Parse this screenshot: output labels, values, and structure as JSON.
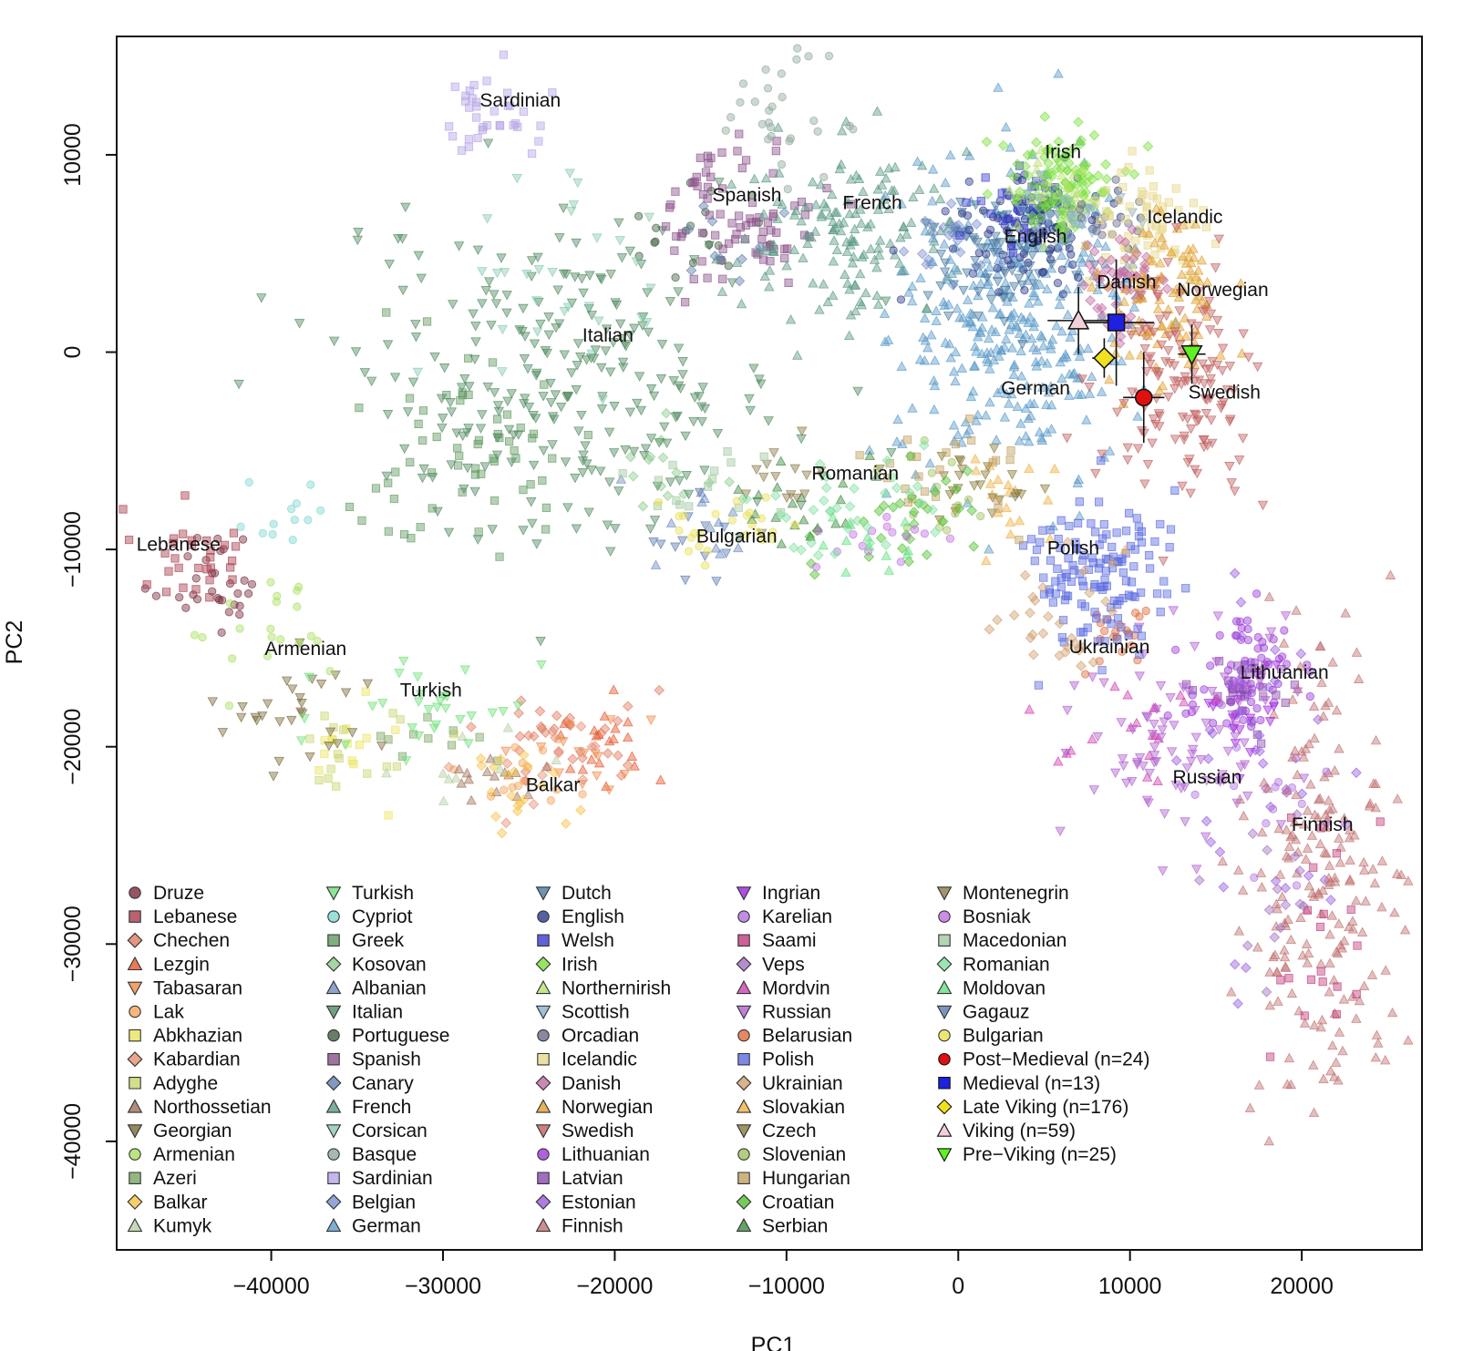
{
  "chart_data": {
    "type": "scatter",
    "title": "",
    "xlabel": "PC1",
    "ylabel": "PC2",
    "xlim": [
      -49000,
      27000
    ],
    "ylim": [
      -45500,
      16000
    ],
    "xticks": [
      -40000,
      -30000,
      -20000,
      -10000,
      0,
      10000,
      20000
    ],
    "yticks": [
      -40000,
      -30000,
      -20000,
      -10000,
      0,
      10000
    ],
    "xtick_labels": [
      "−40000",
      "−30000",
      "−20000",
      "−10000",
      "0",
      "10000",
      "20000"
    ],
    "ytick_labels": [
      "−40000",
      "−30000",
      "−20000",
      "−10000",
      "0",
      "10000"
    ],
    "grid": false,
    "legend_position": "bottom-left",
    "cluster_labels": [
      {
        "text": "Sardinian",
        "x": -25500,
        "y": 12700
      },
      {
        "text": "Irish",
        "x": 6100,
        "y": 10100
      },
      {
        "text": "Spanish",
        "x": -12300,
        "y": 7900
      },
      {
        "text": "French",
        "x": -5000,
        "y": 7500
      },
      {
        "text": "Icelandic",
        "x": 13200,
        "y": 6800
      },
      {
        "text": "English",
        "x": 4500,
        "y": 5800
      },
      {
        "text": "Danish",
        "x": 9800,
        "y": 3500
      },
      {
        "text": "Norwegian",
        "x": 15400,
        "y": 3100
      },
      {
        "text": "Italian",
        "x": -20400,
        "y": 800
      },
      {
        "text": "German",
        "x": 4500,
        "y": -1900
      },
      {
        "text": "Swedish",
        "x": 15500,
        "y": -2100
      },
      {
        "text": "Romanian",
        "x": -6000,
        "y": -6200
      },
      {
        "text": "Bulgarian",
        "x": -12900,
        "y": -9400
      },
      {
        "text": "Lebanese",
        "x": -45400,
        "y": -9800
      },
      {
        "text": "Polish",
        "x": 6700,
        "y": -10000
      },
      {
        "text": "Armenian",
        "x": -38000,
        "y": -15100
      },
      {
        "text": "Ukrainian",
        "x": 8800,
        "y": -15000
      },
      {
        "text": "Lithuanian",
        "x": 19000,
        "y": -16300
      },
      {
        "text": "Turkish",
        "x": -30700,
        "y": -17200
      },
      {
        "text": "Balkar",
        "x": -23600,
        "y": -22000
      },
      {
        "text": "Russian",
        "x": 14500,
        "y": -21600
      },
      {
        "text": "Finnish",
        "x": 21200,
        "y": -24000
      }
    ],
    "series": [
      {
        "name": "Druze",
        "marker": "circle",
        "color": "#7b2c3b",
        "cx": -43500,
        "cy": -11500,
        "sx": 1800,
        "sy": 1400,
        "n": 30
      },
      {
        "name": "Lebanese",
        "marker": "square",
        "color": "#a83b4c",
        "cx": -45000,
        "cy": -10300,
        "sx": 1500,
        "sy": 1200,
        "n": 30
      },
      {
        "name": "Chechen",
        "marker": "diamond",
        "color": "#e07a5f",
        "cx": -22500,
        "cy": -19500,
        "sx": 2500,
        "sy": 1400,
        "n": 30
      },
      {
        "name": "Lezgin",
        "marker": "triangle-up",
        "color": "#e4572e",
        "cx": -21000,
        "cy": -19500,
        "sx": 2000,
        "sy": 1200,
        "n": 20
      },
      {
        "name": "Tabasaran",
        "marker": "triangle-down",
        "color": "#f08a4b",
        "cx": -22000,
        "cy": -20500,
        "sx": 2000,
        "sy": 1200,
        "n": 15
      },
      {
        "name": "Lak",
        "marker": "circle",
        "color": "#f4a259",
        "cx": -25000,
        "cy": -21000,
        "sx": 1800,
        "sy": 1200,
        "n": 15
      },
      {
        "name": "Abkhazian",
        "marker": "square",
        "color": "#e9e45b",
        "cx": -34500,
        "cy": -20300,
        "sx": 1600,
        "sy": 1200,
        "n": 15
      },
      {
        "name": "Kabardian",
        "marker": "diamond",
        "color": "#e58e73",
        "cx": -24000,
        "cy": -20500,
        "sx": 2000,
        "sy": 1300,
        "n": 15
      },
      {
        "name": "Adyghe",
        "marker": "square",
        "color": "#c9d46c",
        "cx": -35500,
        "cy": -20000,
        "sx": 2000,
        "sy": 1300,
        "n": 15
      },
      {
        "name": "Northossetian",
        "marker": "triangle-up",
        "color": "#a0705a",
        "cx": -27000,
        "cy": -21500,
        "sx": 1800,
        "sy": 1000,
        "n": 15
      },
      {
        "name": "Georgian",
        "marker": "triangle-down",
        "color": "#7a6a3a",
        "cx": -38000,
        "cy": -18500,
        "sx": 2500,
        "sy": 1400,
        "n": 30
      },
      {
        "name": "Armenian",
        "marker": "circle",
        "color": "#a8e05f",
        "cx": -39500,
        "cy": -14500,
        "sx": 2000,
        "sy": 1500,
        "n": 20
      },
      {
        "name": "Azeri",
        "marker": "square",
        "color": "#7ca45f",
        "cx": -31000,
        "cy": -19000,
        "sx": 2000,
        "sy": 1000,
        "n": 10
      },
      {
        "name": "Balkar",
        "marker": "diamond",
        "color": "#f6c244",
        "cx": -25500,
        "cy": -22000,
        "sx": 1600,
        "sy": 1200,
        "n": 20
      },
      {
        "name": "Kumyk",
        "marker": "triangle-up",
        "color": "#b5cfa2",
        "cx": -28500,
        "cy": -21000,
        "sx": 2000,
        "sy": 1000,
        "n": 10
      },
      {
        "name": "Turkish",
        "marker": "triangle-down",
        "color": "#6fe07a",
        "cx": -30500,
        "cy": -18000,
        "sx": 3000,
        "sy": 2000,
        "n": 30
      },
      {
        "name": "Cypriot",
        "marker": "circle",
        "color": "#7fd8d0",
        "cx": -39000,
        "cy": -8000,
        "sx": 1500,
        "sy": 1500,
        "n": 12
      },
      {
        "name": "Greek",
        "marker": "square",
        "color": "#5f9a5f",
        "cx": -29000,
        "cy": -5000,
        "sx": 4000,
        "sy": 2500,
        "n": 60
      },
      {
        "name": "Kosovan",
        "marker": "diamond",
        "color": "#8ccc8c",
        "cx": -15000,
        "cy": -6000,
        "sx": 2500,
        "sy": 1500,
        "n": 15
      },
      {
        "name": "Albanian",
        "marker": "triangle-up",
        "color": "#6f8cc0",
        "cx": -14500,
        "cy": -8500,
        "sx": 2000,
        "sy": 1300,
        "n": 12
      },
      {
        "name": "Italian",
        "marker": "triangle-down",
        "color": "#4f8a5f",
        "cx": -23000,
        "cy": -1500,
        "sx": 6500,
        "sy": 4000,
        "n": 260
      },
      {
        "name": "Portuguese",
        "marker": "circle",
        "color": "#406040",
        "cx": -14500,
        "cy": 6200,
        "sx": 2500,
        "sy": 1500,
        "n": 20
      },
      {
        "name": "Spanish",
        "marker": "square",
        "color": "#8a4f8a",
        "cx": -12500,
        "cy": 7000,
        "sx": 2200,
        "sy": 1800,
        "n": 80
      },
      {
        "name": "Canary",
        "marker": "diamond",
        "color": "#5f7fb0",
        "cx": -13500,
        "cy": 5500,
        "sx": 1500,
        "sy": 1500,
        "n": 10
      },
      {
        "name": "French",
        "marker": "triangle-up",
        "color": "#5a9a86",
        "cx": -6000,
        "cy": 6000,
        "sx": 3500,
        "sy": 2200,
        "n": 150
      },
      {
        "name": "Corsican",
        "marker": "triangle-down",
        "color": "#88c9b0",
        "cx": -24000,
        "cy": 3000,
        "sx": 4000,
        "sy": 3500,
        "n": 30
      },
      {
        "name": "Basque",
        "marker": "circle",
        "color": "#8fa89a",
        "cx": -10500,
        "cy": 12300,
        "sx": 1500,
        "sy": 1500,
        "n": 30
      },
      {
        "name": "Sardinian",
        "marker": "square",
        "color": "#b6a4e6",
        "cx": -27500,
        "cy": 12000,
        "sx": 1500,
        "sy": 1300,
        "n": 35
      },
      {
        "name": "Belgian",
        "marker": "diamond",
        "color": "#7a8fd0",
        "cx": -500,
        "cy": 5200,
        "sx": 1500,
        "sy": 1200,
        "n": 25
      },
      {
        "name": "German",
        "marker": "triangle-up",
        "color": "#5a9ac8",
        "cx": 3500,
        "cy": 1500,
        "sx": 3500,
        "sy": 3800,
        "n": 320
      },
      {
        "name": "Dutch",
        "marker": "triangle-down",
        "color": "#4a7aa0",
        "cx": 2500,
        "cy": 5000,
        "sx": 2200,
        "sy": 1500,
        "n": 80
      },
      {
        "name": "English",
        "marker": "circle",
        "color": "#2a3a8a",
        "cx": 4500,
        "cy": 6300,
        "sx": 2000,
        "sy": 1300,
        "n": 120
      },
      {
        "name": "Welsh",
        "marker": "square",
        "color": "#3a3ad0",
        "cx": 3500,
        "cy": 7500,
        "sx": 1500,
        "sy": 1200,
        "n": 25
      },
      {
        "name": "Irish",
        "marker": "diamond",
        "color": "#7ae03a",
        "cx": 6000,
        "cy": 8600,
        "sx": 1600,
        "sy": 1300,
        "n": 110
      },
      {
        "name": "Northernirish",
        "marker": "triangle-up",
        "color": "#b8e06a",
        "cx": 5500,
        "cy": 8000,
        "sx": 1500,
        "sy": 1200,
        "n": 30
      },
      {
        "name": "Scottish",
        "marker": "triangle-down",
        "color": "#8ab0c8",
        "cx": 7000,
        "cy": 6600,
        "sx": 1800,
        "sy": 1300,
        "n": 30
      },
      {
        "name": "Orcadian",
        "marker": "circle",
        "color": "#6a6a8a",
        "cx": 8500,
        "cy": 7000,
        "sx": 1200,
        "sy": 1000,
        "n": 15
      },
      {
        "name": "Icelandic",
        "marker": "square",
        "color": "#e6d88a",
        "cx": 11000,
        "cy": 6500,
        "sx": 1700,
        "sy": 1800,
        "n": 60
      },
      {
        "name": "Danish",
        "marker": "diamond",
        "color": "#c06aa0",
        "cx": 9500,
        "cy": 3000,
        "sx": 1500,
        "sy": 1500,
        "n": 60
      },
      {
        "name": "Norwegian",
        "marker": "triangle-up",
        "color": "#e0a030",
        "cx": 12000,
        "cy": 2500,
        "sx": 1700,
        "sy": 2200,
        "n": 100
      },
      {
        "name": "Swedish",
        "marker": "triangle-down",
        "color": "#c06060",
        "cx": 13000,
        "cy": -1500,
        "sx": 2200,
        "sy": 2800,
        "n": 140
      },
      {
        "name": "Lithuanian",
        "marker": "circle",
        "color": "#9a3ad8",
        "cx": 16500,
        "cy": -16500,
        "sx": 1700,
        "sy": 1500,
        "n": 70
      },
      {
        "name": "Latvian",
        "marker": "square",
        "color": "#8a4ab0",
        "cx": 17000,
        "cy": -17000,
        "sx": 1500,
        "sy": 1400,
        "n": 30
      },
      {
        "name": "Estonian",
        "marker": "diamond",
        "color": "#9a5ae0",
        "cx": 18500,
        "cy": -22000,
        "sx": 2500,
        "sy": 5000,
        "n": 45
      },
      {
        "name": "Finnish",
        "marker": "triangle-up",
        "color": "#c07070",
        "cx": 21000,
        "cy": -26500,
        "sx": 2200,
        "sy": 5500,
        "n": 200
      },
      {
        "name": "Ingrian",
        "marker": "triangle-down",
        "color": "#a020e0",
        "cx": 17000,
        "cy": -18000,
        "sx": 1500,
        "sy": 1500,
        "n": 15
      },
      {
        "name": "Karelian",
        "marker": "circle",
        "color": "#b070e0",
        "cx": 18500,
        "cy": -22500,
        "sx": 1800,
        "sy": 2500,
        "n": 15
      },
      {
        "name": "Saami",
        "marker": "square",
        "color": "#c03a7a",
        "cx": 21000,
        "cy": -30000,
        "sx": 1500,
        "sy": 4000,
        "n": 20
      },
      {
        "name": "Veps",
        "marker": "diamond",
        "color": "#a070c0",
        "cx": 19000,
        "cy": -27000,
        "sx": 1500,
        "sy": 2500,
        "n": 15
      },
      {
        "name": "Mordvin",
        "marker": "triangle-up",
        "color": "#d040b0",
        "cx": 10500,
        "cy": -19000,
        "sx": 2000,
        "sy": 1500,
        "n": 20
      },
      {
        "name": "Russian",
        "marker": "triangle-down",
        "color": "#b060d0",
        "cx": 12500,
        "cy": -19500,
        "sx": 3000,
        "sy": 3000,
        "n": 90
      },
      {
        "name": "Belarusian",
        "marker": "circle",
        "color": "#e06a3a",
        "cx": 9500,
        "cy": -14000,
        "sx": 1500,
        "sy": 1200,
        "n": 20
      },
      {
        "name": "Polish",
        "marker": "square",
        "color": "#5a6ae0",
        "cx": 8000,
        "cy": -11000,
        "sx": 2000,
        "sy": 2000,
        "n": 130
      },
      {
        "name": "Ukrainian",
        "marker": "diamond",
        "color": "#d0a070",
        "cx": 6500,
        "cy": -13500,
        "sx": 2000,
        "sy": 1500,
        "n": 30
      },
      {
        "name": "Slovakian",
        "marker": "triangle-up",
        "color": "#f0b040",
        "cx": 3000,
        "cy": -8000,
        "sx": 1800,
        "sy": 1500,
        "n": 20
      },
      {
        "name": "Czech",
        "marker": "triangle-down",
        "color": "#8a7a3a",
        "cx": 1000,
        "cy": -6500,
        "sx": 2000,
        "sy": 1200,
        "n": 25
      },
      {
        "name": "Slovenian",
        "marker": "circle",
        "color": "#a0c060",
        "cx": -1500,
        "cy": -7500,
        "sx": 1500,
        "sy": 1200,
        "n": 15
      },
      {
        "name": "Hungarian",
        "marker": "square",
        "color": "#c0a060",
        "cx": 0,
        "cy": -6000,
        "sx": 2500,
        "sy": 1500,
        "n": 25
      },
      {
        "name": "Croatian",
        "marker": "diamond",
        "color": "#50c030",
        "cx": -3500,
        "cy": -8500,
        "sx": 2500,
        "sy": 1500,
        "n": 30
      },
      {
        "name": "Serbian",
        "marker": "triangle-up",
        "color": "#408a40",
        "cx": -9000,
        "cy": -8000,
        "sx": 2000,
        "sy": 1200,
        "n": 20
      },
      {
        "name": "Montenegrin",
        "marker": "triangle-down",
        "color": "#8a7a4a",
        "cx": -11000,
        "cy": -7000,
        "sx": 1500,
        "sy": 1000,
        "n": 15
      },
      {
        "name": "Bosniak",
        "marker": "circle",
        "color": "#c070e0",
        "cx": -5000,
        "cy": -9500,
        "sx": 1800,
        "sy": 1000,
        "n": 15
      },
      {
        "name": "Macedonian",
        "marker": "square",
        "color": "#a0c8a0",
        "cx": -14000,
        "cy": -6500,
        "sx": 2000,
        "sy": 1000,
        "n": 15
      },
      {
        "name": "Romanian",
        "marker": "diamond",
        "color": "#80e0a0",
        "cx": -7000,
        "cy": -8000,
        "sx": 2500,
        "sy": 1500,
        "n": 35
      },
      {
        "name": "Moldovan",
        "marker": "triangle-up",
        "color": "#60e080",
        "cx": -6000,
        "cy": -10000,
        "sx": 2000,
        "sy": 1000,
        "n": 12
      },
      {
        "name": "Gagauz",
        "marker": "triangle-down",
        "color": "#5a7ab0",
        "cx": -15500,
        "cy": -9500,
        "sx": 1500,
        "sy": 1000,
        "n": 12
      },
      {
        "name": "Bulgarian",
        "marker": "circle",
        "color": "#e8e050",
        "cx": -13500,
        "cy": -9000,
        "sx": 2000,
        "sy": 1000,
        "n": 25
      }
    ],
    "ancient_samples": [
      {
        "name": "Post−Medieval (n=24)",
        "marker": "circle",
        "color": "#e01010",
        "x": 10800,
        "y": -2300,
        "xerr": 1200,
        "yerr": 2300
      },
      {
        "name": "Medieval (n=13)",
        "marker": "square",
        "color": "#2020e0",
        "x": 9200,
        "y": 1500,
        "xerr": 2200,
        "yerr": 3200
      },
      {
        "name": "Late Viking (n=176)",
        "marker": "diamond",
        "color": "#f0e020",
        "x": 8500,
        "y": -300,
        "xerr": 700,
        "yerr": 1000
      },
      {
        "name": "Viking (n=59)",
        "marker": "triangle-up",
        "color": "#f2d0d6",
        "x": 7000,
        "y": 1600,
        "xerr": 1800,
        "yerr": 1700
      },
      {
        "name": "Pre−Viking (n=25)",
        "marker": "triangle-down",
        "color": "#60f020",
        "x": 13600,
        "y": -100,
        "xerr": 800,
        "yerr": 1500
      }
    ]
  }
}
